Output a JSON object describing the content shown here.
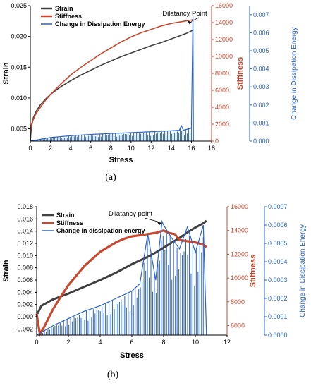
{
  "colors": {
    "strain": "#404040",
    "stiffness": "#c8482f",
    "dissipation": "#2a64c8"
  },
  "chart_data": [
    {
      "type": "line",
      "caption": "(a)",
      "xlabel": "Stress",
      "ylabel": "Strain",
      "y2label": "Stiffness",
      "y3label": "Change in Dissipation Energy",
      "xlim": [
        0,
        18
      ],
      "ylim": [
        0.003,
        0.025
      ],
      "y2lim": [
        0,
        16000
      ],
      "y3lim": [
        0,
        0.0075
      ],
      "xticks": [
        "0",
        "2",
        "4",
        "6",
        "8",
        "10",
        "12",
        "14",
        "16",
        "18"
      ],
      "yticks": [
        "0.005",
        "0.010",
        "0.015",
        "0.020",
        "0.025"
      ],
      "y2ticks": [
        "0",
        "2000",
        "4000",
        "6000",
        "8000",
        "10000",
        "12000",
        "14000",
        "16000"
      ],
      "y3ticks": [
        "0.000",
        "0.001",
        "0.002",
        "0.003",
        "0.004",
        "0.005",
        "0.006",
        "0.007"
      ],
      "legend": [
        "Strain",
        "Stiffness",
        "Change in Dissipation Energy"
      ],
      "legend_position": "top-left",
      "annotation": {
        "text": "Dilatancy Point",
        "x": 16.1,
        "y": 0.0222
      },
      "series": [
        {
          "name": "Strain",
          "axis": "left",
          "x": [
            0,
            0.1,
            0.3,
            0.6,
            1,
            1.5,
            2,
            3,
            4,
            5,
            6,
            7,
            8,
            9,
            10,
            11,
            12,
            13,
            14,
            15,
            15.5,
            16,
            16.2
          ],
          "values": [
            0.003,
            0.0052,
            0.0068,
            0.0079,
            0.0089,
            0.0098,
            0.0106,
            0.0118,
            0.0128,
            0.0137,
            0.0145,
            0.0153,
            0.016,
            0.0167,
            0.0173,
            0.0179,
            0.0185,
            0.019,
            0.0196,
            0.0202,
            0.0205,
            0.0209,
            0.0211
          ]
        },
        {
          "name": "Stiffness",
          "axis": "right",
          "x": [
            0,
            0.05,
            0.2,
            0.5,
            1,
            1.5,
            2,
            3,
            4,
            5,
            6,
            7,
            8,
            9,
            10,
            11,
            12,
            13,
            14,
            15,
            15.5,
            16,
            16.2
          ],
          "values": [
            1000,
            1700,
            2300,
            3100,
            4000,
            4800,
            5500,
            6700,
            7800,
            8700,
            9500,
            10300,
            11000,
            11700,
            12300,
            12800,
            13200,
            13600,
            13900,
            14100,
            14200,
            14300,
            14350
          ]
        },
        {
          "name": "Change in Dissipation Energy",
          "axis": "right2",
          "x": [
            0,
            2,
            4,
            6,
            8,
            10,
            12,
            14,
            14.8,
            15,
            15.2,
            16,
            16.15,
            16.2
          ],
          "values": [
            0,
            0.0002,
            0.0003,
            0.00037,
            0.00042,
            0.00047,
            0.00052,
            0.00057,
            0.0006,
            0.00085,
            0.0006,
            0.00072,
            0.0069,
            0
          ]
        }
      ]
    },
    {
      "type": "line",
      "caption": "(b)",
      "xlabel": "Stress",
      "ylabel": "Strain",
      "y2label": "Stiffness",
      "y3label": "Change in Dissipation Energy",
      "xlim": [
        0,
        12
      ],
      "ylim": [
        -0.003,
        0.018
      ],
      "y2lim": [
        5200,
        16000
      ],
      "y3lim": [
        0,
        0.0007
      ],
      "xticks": [
        "0",
        "2",
        "4",
        "6",
        "8",
        "10",
        "12"
      ],
      "yticks": [
        "-0.002",
        "0.000",
        "0.002",
        "0.004",
        "0.006",
        "0.008",
        "0.010",
        "0.012",
        "0.014",
        "0.016",
        "0.018"
      ],
      "y2ticks": [
        "6000",
        "8000",
        "10000",
        "12000",
        "14000",
        "16000"
      ],
      "y3ticks": [
        "0.0000",
        "0.0001",
        "0.0002",
        "0.0003",
        "0.0004",
        "0.0005",
        "0.0006",
        "0.0007"
      ],
      "legend": [
        "Strain",
        "Stiffness",
        "Change in dissipation energy"
      ],
      "legend_position": "top-left",
      "annotation": {
        "text": "Dilatancy point",
        "x": 7.9,
        "y": 0.0152
      },
      "series": [
        {
          "name": "Strain",
          "axis": "left",
          "x": [
            0.05,
            0.3,
            1,
            2,
            3,
            4,
            5,
            6,
            7,
            7.5,
            8,
            8.5,
            9,
            9.5,
            10,
            10.5,
            10.7
          ],
          "values": [
            0.0005,
            0.0018,
            0.0028,
            0.0038,
            0.0049,
            0.006,
            0.0072,
            0.0086,
            0.0098,
            0.0105,
            0.0113,
            0.0121,
            0.0129,
            0.0138,
            0.0146,
            0.0153,
            0.0157
          ]
        },
        {
          "name": "Stiffness",
          "axis": "right",
          "x": [
            0,
            0.2,
            0.4,
            0.7,
            1,
            1.5,
            2,
            3,
            4,
            5,
            5.5,
            6,
            6.5,
            7,
            7.5,
            8,
            8.3,
            8.7,
            9,
            9.5,
            10,
            10.5,
            10.7
          ],
          "values": [
            7000,
            5300,
            5700,
            6500,
            7300,
            8400,
            9400,
            11000,
            12200,
            13000,
            13300,
            13500,
            13600,
            13700,
            13800,
            14000,
            13800,
            13700,
            13200,
            13100,
            13000,
            12800,
            12600
          ]
        },
        {
          "name": "Change in dissipation energy",
          "axis": "right2",
          "x": [
            0,
            1,
            2,
            3,
            4,
            5,
            6,
            6.5,
            7,
            7.5,
            7.9,
            8,
            8.5,
            9,
            9.5,
            10,
            10.5,
            10.7
          ],
          "values": [
            0,
            5e-05,
            9e-05,
            0.00013,
            0.00016,
            0.0002,
            0.00024,
            0.00028,
            0.00055,
            0.0003,
            0.00062,
            0.0006,
            0.00053,
            0.00047,
            0.00059,
            0.00045,
            0.0006,
            0
          ]
        }
      ]
    }
  ]
}
